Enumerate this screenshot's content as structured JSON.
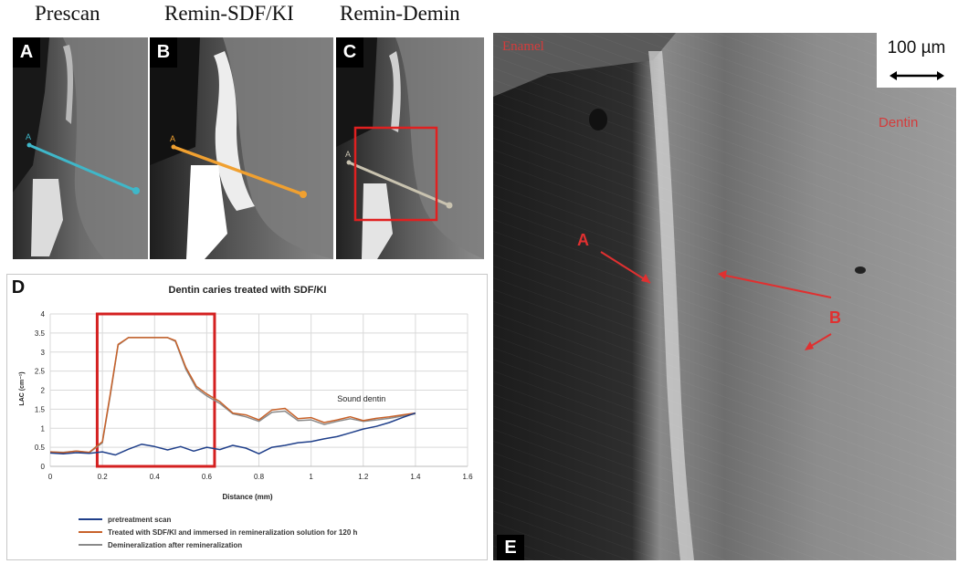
{
  "panel_titles": [
    "Prescan",
    "Remin-SDF/KI",
    "Remin-Demin"
  ],
  "panels": [
    {
      "letter": "A",
      "line_color": "#3fb7c9"
    },
    {
      "letter": "B",
      "line_color": "#f0a030"
    },
    {
      "letter": "C",
      "line_color": "#c9c3b0",
      "roi_color": "#e02020"
    }
  ],
  "point_labels": {
    "start": "A",
    "end": "B"
  },
  "sem": {
    "letter": "E",
    "enamel_label": "Enamel",
    "dentin_label": "Dentin",
    "scale_label": "100 µm",
    "marker_a": "A",
    "marker_b": "B",
    "marker_color": "#e03030"
  },
  "chart_data": {
    "letter": "D",
    "type": "line",
    "title": "Dentin caries treated with SDF/KI",
    "xlabel": "Distance (mm)",
    "ylabel": "LAC (cm⁻¹)",
    "xlim": [
      0,
      1.6
    ],
    "ylim": [
      0,
      4
    ],
    "xticks": [
      "0",
      "0.2",
      "0.4",
      "0.6",
      "0.8",
      "1",
      "1.2",
      "1.4",
      "1.6"
    ],
    "yticks": [
      "0",
      "0.5",
      "1",
      "1.5",
      "2",
      "2.5",
      "3",
      "3.5",
      "4"
    ],
    "grid": true,
    "annotation": "Sound dentin",
    "highlight_box": {
      "x": [
        0.18,
        0.63
      ],
      "y": [
        0,
        4
      ],
      "color": "#d42020"
    },
    "series": [
      {
        "name": "pretreatment scan",
        "color": "#1f3f8a",
        "x": [
          0,
          0.05,
          0.1,
          0.15,
          0.2,
          0.25,
          0.3,
          0.35,
          0.4,
          0.45,
          0.5,
          0.55,
          0.6,
          0.65,
          0.7,
          0.75,
          0.8,
          0.85,
          0.9,
          0.95,
          1.0,
          1.05,
          1.1,
          1.15,
          1.2,
          1.25,
          1.3,
          1.35,
          1.4
        ],
        "y": [
          0.35,
          0.33,
          0.36,
          0.34,
          0.38,
          0.3,
          0.45,
          0.58,
          0.52,
          0.43,
          0.52,
          0.4,
          0.5,
          0.44,
          0.55,
          0.48,
          0.33,
          0.5,
          0.55,
          0.62,
          0.65,
          0.72,
          0.78,
          0.88,
          0.98,
          1.05,
          1.15,
          1.28,
          1.4
        ]
      },
      {
        "name": "Treated with SDF/KI and immersed in remineralization solution for 120 h",
        "color": "#c8622a",
        "x": [
          0,
          0.05,
          0.1,
          0.15,
          0.2,
          0.23,
          0.26,
          0.3,
          0.35,
          0.4,
          0.45,
          0.48,
          0.52,
          0.56,
          0.6,
          0.65,
          0.7,
          0.75,
          0.8,
          0.85,
          0.9,
          0.95,
          1.0,
          1.05,
          1.1,
          1.15,
          1.2,
          1.25,
          1.3,
          1.35,
          1.4
        ],
        "y": [
          0.38,
          0.36,
          0.4,
          0.37,
          0.65,
          1.9,
          3.2,
          3.38,
          3.38,
          3.38,
          3.38,
          3.3,
          2.6,
          2.1,
          1.9,
          1.7,
          1.4,
          1.35,
          1.22,
          1.48,
          1.52,
          1.25,
          1.28,
          1.15,
          1.22,
          1.3,
          1.2,
          1.26,
          1.3,
          1.35,
          1.4
        ]
      },
      {
        "name": "Demineralization after remineralization",
        "color": "#8a8a8a",
        "x": [
          0,
          0.05,
          0.1,
          0.15,
          0.2,
          0.23,
          0.26,
          0.3,
          0.35,
          0.4,
          0.45,
          0.48,
          0.52,
          0.56,
          0.6,
          0.65,
          0.7,
          0.75,
          0.8,
          0.85,
          0.9,
          0.95,
          1.0,
          1.05,
          1.1,
          1.15,
          1.2,
          1.25,
          1.3,
          1.35,
          1.4
        ],
        "y": [
          0.38,
          0.37,
          0.4,
          0.36,
          0.62,
          1.85,
          3.18,
          3.38,
          3.38,
          3.38,
          3.38,
          3.28,
          2.55,
          2.05,
          1.85,
          1.65,
          1.38,
          1.3,
          1.18,
          1.42,
          1.45,
          1.2,
          1.22,
          1.1,
          1.18,
          1.25,
          1.18,
          1.22,
          1.26,
          1.32,
          1.38
        ]
      }
    ]
  }
}
